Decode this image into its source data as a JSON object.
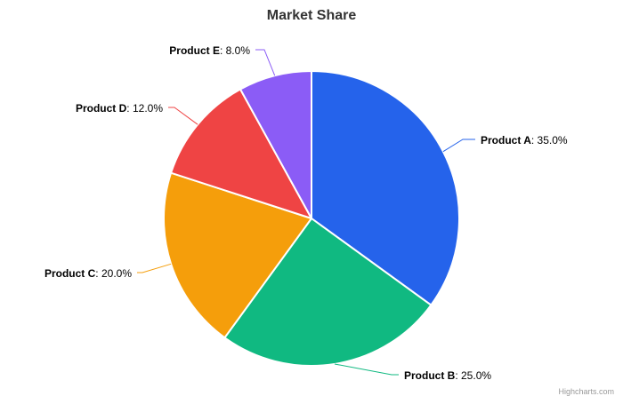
{
  "chart_data": {
    "type": "pie",
    "title": "Market Share",
    "slices": [
      {
        "name": "Product A",
        "value": 35.0,
        "label": "35.0%",
        "color": "#2563eb"
      },
      {
        "name": "Product B",
        "value": 25.0,
        "label": "25.0%",
        "color": "#10b981"
      },
      {
        "name": "Product C",
        "value": 20.0,
        "label": "20.0%",
        "color": "#f59e0b"
      },
      {
        "name": "Product D",
        "value": 12.0,
        "label": "12.0%",
        "color": "#ef4444"
      },
      {
        "name": "Product E",
        "value": 8.0,
        "label": "8.0%",
        "color": "#8b5cf6"
      }
    ]
  },
  "credits": "Highcharts.com"
}
